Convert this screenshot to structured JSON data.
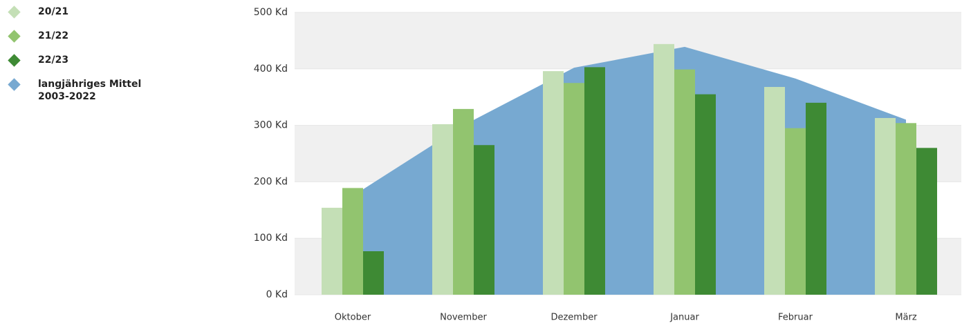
{
  "chart_data": {
    "type": "bar",
    "categories": [
      "Oktober",
      "November",
      "Dezember",
      "Januar",
      "Februar",
      "März"
    ],
    "series": [
      {
        "name": "20/21",
        "color": "#c4dfb6",
        "values": [
          154,
          302,
          396,
          444,
          368,
          313
        ]
      },
      {
        "name": "21/22",
        "color": "#92c46f",
        "values": [
          189,
          329,
          375,
          399,
          295,
          304
        ]
      },
      {
        "name": "22/23",
        "color": "#3e8a34",
        "values": [
          77,
          265,
          403,
          355,
          340,
          260
        ]
      },
      {
        "name": "langjähriges Mittel 2003-2022",
        "type": "area",
        "color": "#77a9d1",
        "values": [
          175,
          300,
          402,
          439,
          383,
          310
        ]
      }
    ],
    "ylim": [
      0,
      500
    ],
    "yticks": [
      {
        "value": 0,
        "label": "0 Kd"
      },
      {
        "value": 100,
        "label": "100 Kd"
      },
      {
        "value": 200,
        "label": "200 Kd"
      },
      {
        "value": 300,
        "label": "300 Kd"
      },
      {
        "value": 400,
        "label": "400 Kd"
      },
      {
        "value": 500,
        "label": "500 Kd"
      }
    ],
    "legend": "left"
  }
}
